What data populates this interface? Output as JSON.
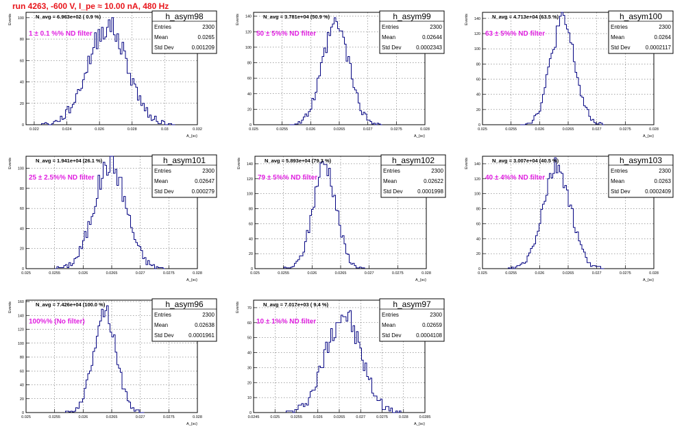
{
  "canvas": {
    "run_title": "run 4263,  -600 V, I_pe ≈ 10.00 nA, 480 Hz"
  },
  "colors": {
    "histogram_line": "#000080",
    "filter_label": "#e020e0",
    "run_title": "#e8141a",
    "grid": "#000000"
  },
  "stat_labels": {
    "entries": "Entries",
    "mean": "Mean",
    "std": "Std Dev"
  },
  "chart_data": [
    {
      "type": "bar",
      "name": "h_asym98",
      "navg": "N_avg = 6.963e+02 ( 0.9 %)",
      "filter": "1 ± 0.1 %% ND filter",
      "entries": "2300",
      "mean": "0.0265",
      "std": "0.001209",
      "ylabel": "Events",
      "xlabel": "A_{sc}",
      "xlim": [
        0.0215,
        0.032
      ],
      "ylim": [
        0,
        105
      ],
      "xticks": [
        "0.022",
        "0.024",
        "0.026",
        "0.028",
        "0.03",
        "0.032"
      ],
      "yticks": [
        "0",
        "20",
        "40",
        "60",
        "80",
        "100"
      ],
      "center": 0.0265,
      "sigma": 0.001209,
      "peak": 92,
      "seed": 98
    },
    {
      "type": "bar",
      "name": "h_asym99",
      "navg": "N_avg = 3.781e+04 (50.9 %)",
      "filter": "50 ± 5%% ND filter",
      "entries": "2300",
      "mean": "0.02644",
      "std": "0.0002343",
      "ylabel": "Events",
      "xlabel": "A_{sc}",
      "xlim": [
        0.025,
        0.028
      ],
      "ylim": [
        0,
        145
      ],
      "xticks": [
        "0.025",
        "0.0255",
        "0.026",
        "0.0265",
        "0.027",
        "0.0275",
        "0.028"
      ],
      "yticks": [
        "0",
        "20",
        "40",
        "60",
        "80",
        "100",
        "120",
        "140"
      ],
      "center": 0.02644,
      "sigma": 0.0002343,
      "peak": 128,
      "seed": 99
    },
    {
      "type": "bar",
      "name": "h_asym100",
      "navg": "N_avg = 4.713e+04 (63.5 %)",
      "filter": "63 ± 5%% ND filter",
      "entries": "2300",
      "mean": "0.0264",
      "std": "0.0002117",
      "ylabel": "Events",
      "xlabel": "A_{sc}",
      "xlim": [
        0.025,
        0.028
      ],
      "ylim": [
        0,
        148
      ],
      "xticks": [
        "0.025",
        "0.0255",
        "0.026",
        "0.0265",
        "0.027",
        "0.0275",
        "0.028"
      ],
      "yticks": [
        "0",
        "20",
        "40",
        "60",
        "80",
        "100",
        "120",
        "140"
      ],
      "center": 0.0264,
      "sigma": 0.0002117,
      "peak": 136,
      "seed": 100
    },
    {
      "type": "bar",
      "name": "h_asym101",
      "navg": "N_avg = 1.941e+04 (26.1 %)",
      "filter": "25 ± 2.5%% ND filter",
      "entries": "2300",
      "mean": "0.02647",
      "std": "0.000279",
      "ylabel": "Events",
      "xlabel": "A_{sc}",
      "xlim": [
        0.025,
        0.028
      ],
      "ylim": [
        0,
        112
      ],
      "xticks": [
        "0.025",
        "0.0255",
        "0.026",
        "0.0265",
        "0.027",
        "0.0275",
        "0.028"
      ],
      "yticks": [
        "0",
        "20",
        "40",
        "60",
        "80",
        "100"
      ],
      "center": 0.02647,
      "sigma": 0.000279,
      "peak": 105,
      "seed": 101
    },
    {
      "type": "bar",
      "name": "h_asym102",
      "navg": "N_avg = 5.893e+04 (79.3 %)",
      "filter": "79 ± 5%% ND filter",
      "entries": "2300",
      "mean": "0.02622",
      "std": "0.0001998",
      "ylabel": "Events",
      "xlabel": "A_{sc}",
      "xlim": [
        0.025,
        0.028
      ],
      "ylim": [
        0,
        150
      ],
      "xticks": [
        "0.025",
        "0.0255",
        "0.026",
        "0.0265",
        "0.027",
        "0.0275",
        "0.028"
      ],
      "yticks": [
        "0",
        "20",
        "40",
        "60",
        "80",
        "100",
        "120",
        "140"
      ],
      "center": 0.02622,
      "sigma": 0.0001998,
      "peak": 140,
      "seed": 102
    },
    {
      "type": "bar",
      "name": "h_asym103",
      "navg": "N_avg = 3.007e+04 (40.5 %)",
      "filter": "40 ± 4%% ND filter",
      "entries": "2300",
      "mean": "0.0263",
      "std": "0.0002409",
      "ylabel": "Events",
      "xlabel": "A_{sc}",
      "xlim": [
        0.025,
        0.028
      ],
      "ylim": [
        0,
        150
      ],
      "xticks": [
        "0.025",
        "0.0255",
        "0.026",
        "0.0265",
        "0.027",
        "0.0275",
        "0.028"
      ],
      "yticks": [
        "0",
        "20",
        "40",
        "60",
        "80",
        "100",
        "120",
        "140"
      ],
      "center": 0.0263,
      "sigma": 0.0002409,
      "peak": 135,
      "seed": 103
    },
    {
      "type": "bar",
      "name": "h_asym96",
      "navg": "N_avg = 7.426e+04 (100.0 %)",
      "filter": "100%% (No filter)",
      "entries": "2300",
      "mean": "0.02638",
      "std": "0.0001961",
      "ylabel": "Events",
      "xlabel": "A_{sc}",
      "xlim": [
        0.025,
        0.028
      ],
      "ylim": [
        0,
        162
      ],
      "xticks": [
        "0.025",
        "0.0255",
        "0.026",
        "0.0265",
        "0.027",
        "0.0275",
        "0.028"
      ],
      "yticks": [
        "0",
        "20",
        "40",
        "60",
        "80",
        "100",
        "120",
        "140",
        "160"
      ],
      "center": 0.02638,
      "sigma": 0.0001961,
      "peak": 148,
      "seed": 96
    },
    {
      "type": "bar",
      "name": "h_asym97",
      "navg": "N_avg = 7.017e+03 ( 9.4 %)",
      "filter": "10 ± 1%% ND filter",
      "entries": "2300",
      "mean": "0.02659",
      "std": "0.0004108",
      "ylabel": "Events",
      "xlabel": "A_{sc}",
      "xlim": [
        0.0245,
        0.0285
      ],
      "ylim": [
        0,
        75
      ],
      "xticks": [
        "0.0245",
        "0.025",
        "0.0255",
        "0.026",
        "0.0265",
        "0.027",
        "0.0275",
        "0.028",
        "0.0285"
      ],
      "yticks": [
        "0",
        "10",
        "20",
        "30",
        "40",
        "50",
        "60",
        "70"
      ],
      "center": 0.02659,
      "sigma": 0.0004108,
      "peak": 66,
      "seed": 97
    }
  ]
}
